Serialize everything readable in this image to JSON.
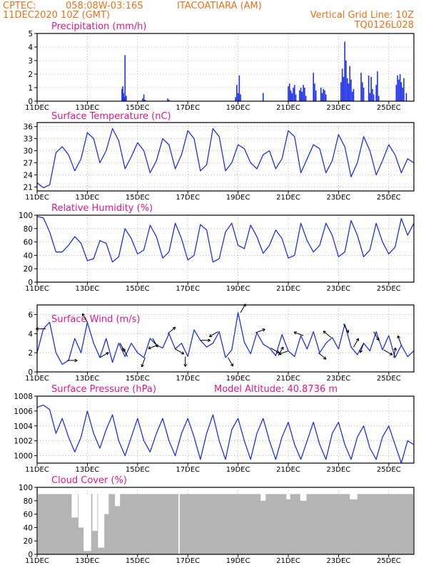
{
  "header": {
    "source": "CPTEC:",
    "coords": "058:08W-03:16S",
    "station": "ITACOATIARA (AM)",
    "run": "11DEC2020 10Z (GMT)",
    "grid_note": "Vertical Grid Line: 10Z",
    "model": "TQ0126L028"
  },
  "colors": {
    "header": "#e8731c",
    "title": "#e0188c",
    "line": "#1f32e6",
    "cloud": "#b4b4b4",
    "frame": "#000000",
    "grid": "#8a8a8a"
  },
  "x_ticks": [
    "11DEC",
    "13DEC",
    "15DEC",
    "17DEC",
    "19DEC",
    "21DEC",
    "23DEC",
    "25DEC"
  ],
  "x_tick_days": [
    0,
    2,
    4,
    6,
    8,
    10,
    12,
    14
  ],
  "x_range_days": [
    0,
    15
  ],
  "chart_data": [
    {
      "id": "precip",
      "type": "bar",
      "title": "Precipitation (mm/h)",
      "ylim": [
        0,
        5
      ],
      "yticks": [
        0,
        1,
        2,
        3,
        4,
        5
      ],
      "grid": true,
      "x": [
        3.38,
        3.41,
        3.44,
        3.47,
        3.5,
        3.55,
        4.2,
        4.25,
        4.3,
        5.2,
        5.25,
        7.9,
        7.95,
        8.0,
        8.05,
        8.1,
        9.0,
        10.0,
        10.05,
        10.1,
        10.15,
        10.2,
        10.25,
        10.3,
        10.45,
        10.5,
        10.55,
        10.6,
        10.65,
        10.7,
        11.0,
        11.05,
        11.1,
        11.3,
        11.35,
        11.4,
        11.45,
        11.5,
        12.1,
        12.15,
        12.2,
        12.25,
        12.3,
        12.35,
        12.4,
        12.45,
        12.5,
        12.55,
        12.6,
        12.9,
        12.95,
        13.0,
        13.2,
        13.25,
        13.3,
        13.35,
        13.4,
        13.5,
        13.55,
        13.6,
        14.3,
        14.35,
        14.4,
        14.45,
        14.5,
        14.55,
        14.6,
        14.7
      ],
      "values": [
        0.9,
        1.1,
        0.6,
        0.3,
        3.4,
        0.4,
        0.2,
        0.5,
        0.1,
        0.2,
        0.1,
        0.3,
        1.2,
        0.6,
        1.9,
        0.5,
        0.6,
        1.1,
        1.3,
        0.8,
        0.6,
        1.0,
        1.2,
        0.5,
        0.8,
        1.0,
        0.7,
        1.2,
        1.0,
        0.4,
        2.1,
        1.3,
        0.8,
        1.0,
        0.6,
        0.9,
        0.8,
        0.5,
        1.4,
        2.4,
        1.8,
        4.4,
        3.0,
        1.7,
        1.3,
        2.6,
        1.6,
        0.7,
        0.9,
        2.1,
        1.4,
        1.0,
        1.9,
        0.6,
        1.8,
        0.9,
        0.5,
        1.2,
        2.2,
        0.4,
        1.2,
        1.9,
        1.6,
        2.0,
        1.4,
        1.0,
        1.7,
        0.6
      ]
    },
    {
      "id": "temp",
      "type": "line",
      "title": "Surface Temperature (nC)",
      "ylim": [
        20,
        37
      ],
      "yticks": [
        21,
        24,
        27,
        30,
        33,
        36
      ],
      "grid": true,
      "x": [
        0.0,
        0.25,
        0.5,
        0.75,
        1.0,
        1.25,
        1.5,
        1.75,
        2.0,
        2.25,
        2.5,
        2.75,
        3.0,
        3.25,
        3.5,
        3.75,
        4.0,
        4.25,
        4.5,
        4.75,
        5.0,
        5.25,
        5.5,
        5.75,
        6.0,
        6.25,
        6.5,
        6.75,
        7.0,
        7.25,
        7.5,
        7.75,
        8.0,
        8.25,
        8.5,
        8.75,
        9.0,
        9.25,
        9.5,
        9.75,
        10.0,
        10.25,
        10.5,
        10.75,
        11.0,
        11.25,
        11.5,
        11.75,
        12.0,
        12.25,
        12.5,
        12.75,
        13.0,
        13.25,
        13.5,
        13.75,
        14.0,
        14.25,
        14.5,
        14.75,
        15.0
      ],
      "values": [
        22.0,
        20.8,
        21.5,
        29.5,
        31.0,
        29.0,
        25.0,
        28.0,
        34.5,
        33.0,
        27.0,
        30.0,
        35.5,
        32.5,
        25.5,
        28.5,
        32.0,
        30.0,
        24.5,
        27.5,
        33.0,
        31.5,
        25.5,
        29.0,
        35.0,
        33.0,
        25.0,
        26.5,
        35.5,
        33.5,
        25.0,
        27.0,
        31.5,
        30.5,
        27.0,
        25.5,
        29.0,
        30.0,
        25.5,
        28.0,
        35.0,
        33.5,
        24.5,
        28.0,
        31.5,
        30.5,
        24.5,
        27.5,
        34.0,
        31.0,
        23.5,
        27.0,
        33.5,
        30.0,
        24.0,
        27.5,
        31.5,
        29.0,
        24.5,
        28.0,
        27.0
      ],
      "line_color": "#1f32e6"
    },
    {
      "id": "rh",
      "type": "line",
      "title": "Relative Humidity (%)",
      "ylim": [
        0,
        100
      ],
      "yticks": [
        0,
        20,
        40,
        60,
        80,
        100
      ],
      "grid": true,
      "x": [
        0.0,
        0.25,
        0.5,
        0.75,
        1.0,
        1.25,
        1.5,
        1.75,
        2.0,
        2.25,
        2.5,
        2.75,
        3.0,
        3.25,
        3.5,
        3.75,
        4.0,
        4.25,
        4.5,
        4.75,
        5.0,
        5.25,
        5.5,
        5.75,
        6.0,
        6.25,
        6.5,
        6.75,
        7.0,
        7.25,
        7.5,
        7.75,
        8.0,
        8.25,
        8.5,
        8.75,
        9.0,
        9.25,
        9.5,
        9.75,
        10.0,
        10.25,
        10.5,
        10.75,
        11.0,
        11.25,
        11.5,
        11.75,
        12.0,
        12.25,
        12.5,
        12.75,
        13.0,
        13.25,
        13.5,
        13.75,
        14.0,
        14.25,
        14.5,
        14.75,
        15.0
      ],
      "values": [
        98.0,
        96.0,
        75.0,
        45.0,
        45.0,
        55.0,
        68.0,
        58.0,
        32.0,
        35.0,
        62.0,
        58.0,
        30.0,
        38.0,
        80.0,
        65.0,
        42.0,
        48.0,
        85.0,
        68.0,
        36.0,
        45.0,
        88.0,
        65.0,
        33.0,
        40.0,
        86.0,
        78.0,
        30.0,
        35.0,
        75.0,
        88.0,
        55.0,
        50.0,
        85.0,
        68.0,
        43.0,
        55.0,
        78.0,
        65.0,
        36.0,
        40.0,
        88.0,
        62.0,
        45.0,
        55.0,
        88.0,
        70.0,
        38.0,
        45.0,
        92.0,
        70.0,
        38.0,
        48.0,
        88.0,
        60.0,
        42.0,
        52.0,
        95.0,
        70.0,
        88.0
      ],
      "line_color": "#1f32e6"
    },
    {
      "id": "wind",
      "type": "line",
      "title": "Surface Wind (m/s)",
      "ylim": [
        0,
        7
      ],
      "yticks": [
        0,
        2,
        4,
        6
      ],
      "grid": true,
      "x": [
        0.0,
        0.25,
        0.5,
        0.75,
        1.0,
        1.25,
        1.5,
        1.75,
        2.0,
        2.25,
        2.5,
        2.75,
        3.0,
        3.25,
        3.5,
        3.75,
        4.0,
        4.25,
        4.5,
        4.75,
        5.0,
        5.25,
        5.5,
        5.75,
        6.0,
        6.25,
        6.5,
        6.75,
        7.0,
        7.25,
        7.5,
        7.75,
        8.0,
        8.25,
        8.5,
        8.75,
        9.0,
        9.25,
        9.5,
        9.75,
        10.0,
        10.25,
        10.5,
        10.75,
        11.0,
        11.25,
        11.5,
        11.75,
        12.0,
        12.25,
        12.5,
        12.75,
        13.0,
        13.25,
        13.5,
        13.75,
        14.0,
        14.25,
        14.5,
        14.75,
        15.0
      ],
      "values": [
        2.0,
        4.5,
        5.2,
        2.0,
        0.8,
        1.2,
        3.5,
        2.0,
        5.2,
        3.0,
        1.5,
        3.5,
        1.0,
        3.0,
        1.6,
        3.0,
        2.0,
        1.5,
        3.5,
        2.8,
        2.5,
        4.0,
        2.4,
        3.0,
        1.6,
        4.4,
        3.3,
        2.6,
        3.0,
        4.2,
        1.5,
        2.3,
        6.2,
        3.1,
        1.9,
        4.1,
        2.9,
        2.5,
        1.7,
        3.9,
        2.2,
        1.6,
        3.8,
        2.4,
        4.2,
        2.0,
        3.0,
        3.6,
        2.4,
        5.0,
        2.6,
        1.8,
        3.0,
        2.2,
        4.2,
        2.3,
        3.8,
        1.5,
        2.8,
        1.6,
        2.2
      ],
      "arrows_x": [
        0.35,
        1.2,
        2.0,
        2.5,
        3.3,
        3.6,
        4.3,
        4.6,
        4.8,
        5.2,
        5.5,
        5.9,
        6.5,
        7.2,
        7.6,
        8.1,
        8.7,
        9.3,
        9.6,
        10.0,
        10.6,
        11.2,
        11.7,
        12.2,
        12.6,
        13.0,
        13.4,
        13.8,
        14.2,
        14.5
      ],
      "arrows_dir_deg": [
        180,
        0,
        120,
        30,
        300,
        120,
        250,
        300,
        200,
        40,
        330,
        270,
        0,
        210,
        300,
        60,
        20,
        330,
        60,
        200,
        160,
        320,
        140,
        300,
        60,
        250,
        300,
        330,
        80,
        110
      ],
      "line_color": "#1f32e6"
    },
    {
      "id": "pressure",
      "type": "line",
      "title": "Surface Pressure (hPa)",
      "annotation": "Model Altitude: 40.8736 m",
      "ylim": [
        999,
        1008
      ],
      "yticks": [
        1000,
        1002,
        1004,
        1006,
        1008
      ],
      "grid": true,
      "x": [
        0.0,
        0.25,
        0.5,
        0.75,
        1.0,
        1.25,
        1.5,
        1.75,
        2.0,
        2.25,
        2.5,
        2.75,
        3.0,
        3.25,
        3.5,
        3.75,
        4.0,
        4.25,
        4.5,
        4.75,
        5.0,
        5.25,
        5.5,
        5.75,
        6.0,
        6.25,
        6.5,
        6.75,
        7.0,
        7.25,
        7.5,
        7.75,
        8.0,
        8.25,
        8.5,
        8.75,
        9.0,
        9.25,
        9.5,
        9.75,
        10.0,
        10.25,
        10.5,
        10.75,
        11.0,
        11.25,
        11.5,
        11.75,
        12.0,
        12.25,
        12.5,
        12.75,
        13.0,
        13.25,
        13.5,
        13.75,
        14.0,
        14.25,
        14.5,
        14.75,
        15.0
      ],
      "values": [
        1006.5,
        1006.8,
        1006.2,
        1003.0,
        1005.0,
        1002.5,
        1000.5,
        1002.5,
        1006.0,
        1003.0,
        1001.0,
        1003.5,
        1005.5,
        1002.0,
        1000.0,
        1002.5,
        1005.0,
        1002.0,
        1000.5,
        1003.0,
        1005.0,
        1002.0,
        1000.0,
        1003.0,
        1005.0,
        1002.5,
        999.5,
        1003.0,
        1005.5,
        1002.0,
        999.5,
        1003.5,
        1005.0,
        1002.0,
        999.5,
        1003.0,
        1005.0,
        1002.0,
        999.5,
        1002.5,
        1004.5,
        1001.5,
        999.5,
        1002.0,
        1004.5,
        1001.5,
        999.5,
        1003.0,
        1004.5,
        1001.5,
        999.5,
        1002.5,
        1004.0,
        1001.0,
        999.5,
        1002.5,
        1004.0,
        1001.5,
        999.0,
        1002.0,
        1001.5
      ],
      "line_color": "#1f32e6"
    },
    {
      "id": "cloud",
      "type": "bar",
      "title": "Cloud Cover (%)",
      "ylim": [
        0,
        100
      ],
      "yticks": [
        0,
        20,
        40,
        60,
        80,
        100
      ],
      "grid": true,
      "baseline": 90,
      "dips": [
        {
          "x": 1.5,
          "w": 0.25,
          "value": 55
        },
        {
          "x": 1.8,
          "w": 0.3,
          "value": 40
        },
        {
          "x": 2.0,
          "w": 0.3,
          "value": 5
        },
        {
          "x": 2.3,
          "w": 0.2,
          "value": 35
        },
        {
          "x": 2.55,
          "w": 0.25,
          "value": 10
        },
        {
          "x": 2.75,
          "w": 0.2,
          "value": 60
        },
        {
          "x": 3.2,
          "w": 0.2,
          "value": 72
        },
        {
          "x": 5.65,
          "w": 0.05,
          "value": 0
        },
        {
          "x": 9.0,
          "w": 0.2,
          "value": 80
        },
        {
          "x": 10.0,
          "w": 0.15,
          "value": 82
        },
        {
          "x": 10.6,
          "w": 0.25,
          "value": 80
        },
        {
          "x": 12.6,
          "w": 0.3,
          "value": 82
        }
      ],
      "bar_color": "#b4b4b4"
    }
  ]
}
